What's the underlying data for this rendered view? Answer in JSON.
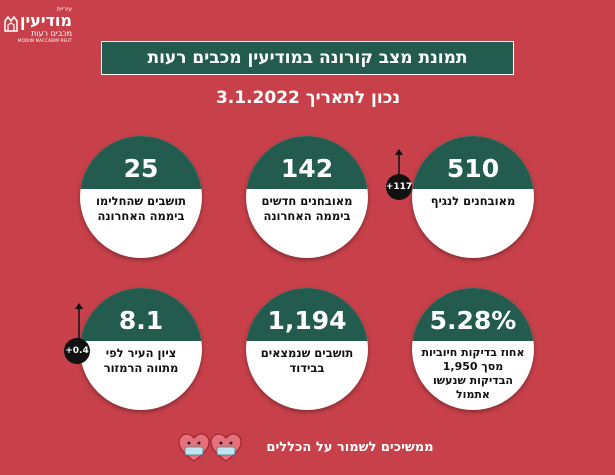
{
  "logo": {
    "small": "עיריית",
    "big": "מודיעין",
    "mid": "מכבים רעות",
    "tiny": "MODIIN MACCABIM REUT",
    "icon": "crown-icon"
  },
  "header": {
    "title": "תמונת מצב קורונה במודיעין מכבים רעות",
    "date_line": "נכון לתאריך 3.1.2022"
  },
  "stats": [
    {
      "value": "510",
      "label": "מאובחנים לנגיף"
    },
    {
      "value": "142",
      "label": "מאובחנים חדשים ביממה האחרונה"
    },
    {
      "value": "25",
      "label": "תושבים שהחלימו ביממה האחרונה"
    },
    {
      "value": "5.28%",
      "label": "אחוז בדיקות חיוביות מסך 1,950 הבדיקות שנעשו אתמול"
    },
    {
      "value": "1,194",
      "label": "תושבים שנמצאים בבידוד"
    },
    {
      "value": "8.1",
      "label": "ציון העיר לפי מתווה הרמזור"
    }
  ],
  "deltas": [
    {
      "text": "+117",
      "direction": "up"
    },
    {
      "text": "+0.4",
      "direction": "up"
    }
  ],
  "footer": {
    "text": "ממשיכים לשמור על הכללים",
    "icon": "masked-hearts-icon"
  },
  "colors": {
    "background": "#c8414a",
    "accent": "#235c4f",
    "card": "#ffffff"
  }
}
